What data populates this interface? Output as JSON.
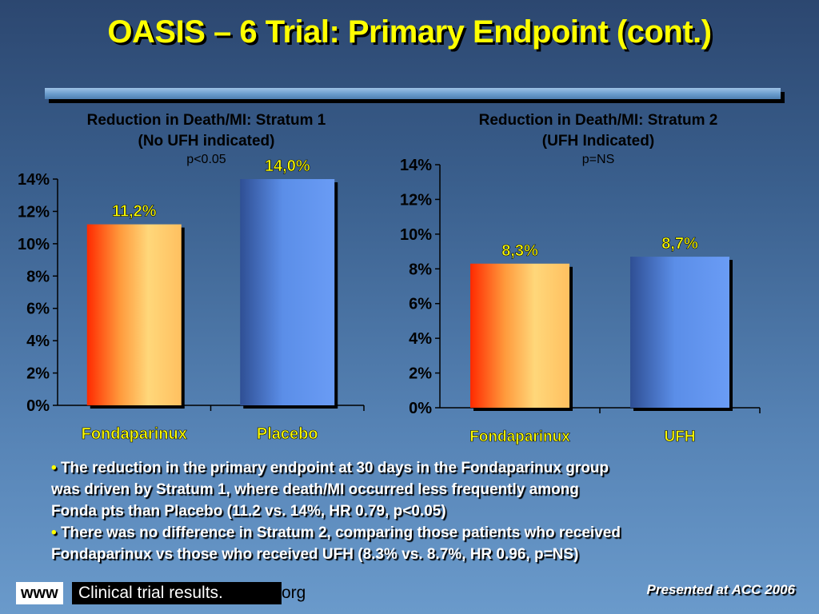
{
  "slide": {
    "title": "OASIS – 6 Trial: Primary Endpoint (cont.)"
  },
  "chart_data": [
    {
      "type": "bar",
      "title_line1": "Reduction in Death/MI: Stratum 1",
      "title_line2": "(No UFH indicated)",
      "pvalue": "p<0.05",
      "categories": [
        "Fondaparinux",
        "Placebo"
      ],
      "values": [
        11.2,
        14.0
      ],
      "data_labels": [
        "11,2%",
        "14,0%"
      ],
      "yticks": [
        "0%",
        "2%",
        "4%",
        "6%",
        "8%",
        "10%",
        "12%",
        "14%"
      ],
      "ylim": [
        0,
        14
      ],
      "colors": [
        "#ffd166",
        "#5e8fe0"
      ]
    },
    {
      "type": "bar",
      "title_line1": "Reduction in Death/MI: Stratum 2",
      "title_line2": "(UFH Indicated)",
      "pvalue": "p=NS",
      "categories": [
        "Fondaparinux",
        "UFH"
      ],
      "values": [
        8.3,
        8.7
      ],
      "data_labels": [
        "8,3%",
        "8,7%"
      ],
      "yticks": [
        "0%",
        "2%",
        "4%",
        "6%",
        "8%",
        "10%",
        "12%",
        "14%"
      ],
      "ylim": [
        0,
        14
      ],
      "colors": [
        "#ffd166",
        "#5e8fe0"
      ]
    }
  ],
  "bullets": [
    {
      "marker": "•",
      "lines": [
        "The reduction in the primary endpoint at 30 days in the Fondaparinux group",
        "was driven by Stratum 1, where death/MI occurred less frequently among",
        "Fonda pts than Placebo (11.2 vs. 14%, HR 0.79, p<0.05)"
      ]
    },
    {
      "marker": "•",
      "lines": [
        "There was no difference in Stratum 2, comparing those patients who received",
        "Fondaparinux vs those who received UFH (8.3% vs. 8.7%, HR 0.96, p=NS)"
      ]
    }
  ],
  "footer": {
    "www": "www",
    "brand": "Clinical trial results.",
    "org": "org",
    "presented": "Presented at ACC 2006"
  }
}
